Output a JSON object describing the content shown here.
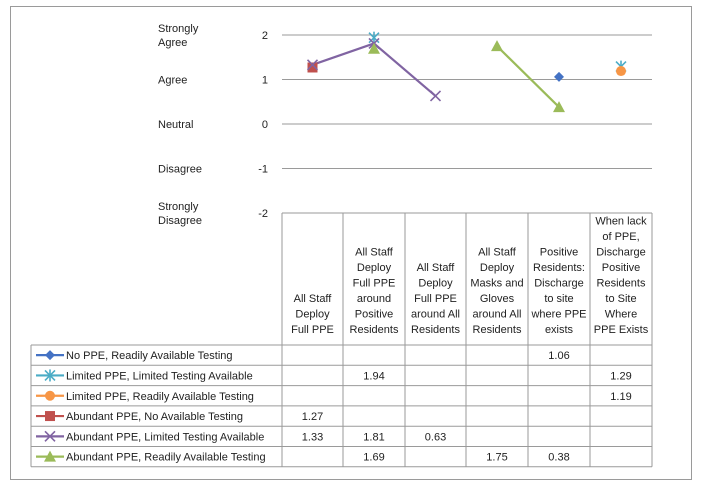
{
  "chart_data": {
    "type": "line",
    "categories": [
      [
        "All Staff",
        "Deploy",
        "Full PPE"
      ],
      [
        "All Staff",
        "Deploy",
        "Full PPE",
        "around",
        "Positive",
        "Residents"
      ],
      [
        "All Staff",
        "Deploy",
        "Full PPE",
        "around All",
        "Residents"
      ],
      [
        "All Staff",
        "Deploy",
        "Masks and",
        "Gloves",
        "around All",
        "Residents"
      ],
      [
        "Positive",
        "Residents:",
        "Discharge",
        "to site",
        "where PPE",
        "exists"
      ],
      [
        "When lack",
        "of PPE,",
        "Discharge",
        "Positive",
        "Residents",
        "to Site",
        "Where",
        "PPE Exists"
      ]
    ],
    "ylim": [
      -2,
      2
    ],
    "yticks": [
      2,
      1,
      0,
      -1,
      -2
    ],
    "y_word_labels": [
      {
        "value": 2,
        "lines": [
          "Strongly",
          "Agree"
        ]
      },
      {
        "value": 1,
        "lines": [
          "Agree"
        ]
      },
      {
        "value": 0,
        "lines": [
          "Neutral"
        ]
      },
      {
        "value": -1,
        "lines": [
          "Disagree"
        ]
      },
      {
        "value": -2,
        "lines": [
          "Strongly",
          "Disagree"
        ]
      }
    ],
    "grid": true,
    "series": [
      {
        "name": "No PPE, Readily Available Testing",
        "color": "#4472c4",
        "marker": "diamond",
        "values": [
          null,
          null,
          null,
          null,
          1.06,
          null
        ]
      },
      {
        "name": "Limited PPE, Limited Testing Available",
        "color": "#4bacc6",
        "marker": "star",
        "values": [
          null,
          1.94,
          null,
          null,
          null,
          1.29
        ]
      },
      {
        "name": "Limited PPE, Readily Available Testing",
        "color": "#f79646",
        "marker": "circle",
        "values": [
          null,
          null,
          null,
          null,
          null,
          1.19
        ]
      },
      {
        "name": "Abundant PPE, No Available Testing",
        "color": "#c0504d",
        "marker": "square",
        "values": [
          1.27,
          null,
          null,
          null,
          null,
          null
        ]
      },
      {
        "name": "Abundant PPE, Limited Testing Available",
        "color": "#8064a2",
        "marker": "x",
        "values": [
          1.33,
          1.81,
          0.63,
          null,
          null,
          null
        ]
      },
      {
        "name": "Abundant PPE, Readily Available Testing",
        "color": "#9bbb59",
        "marker": "triangle",
        "values": [
          null,
          1.69,
          null,
          1.75,
          0.38,
          null
        ]
      }
    ],
    "table_values": [
      [
        "",
        "",
        "",
        "",
        "1.06",
        ""
      ],
      [
        "",
        "1.94",
        "",
        "",
        "",
        "1.29"
      ],
      [
        "",
        "",
        "",
        "",
        "",
        "1.19"
      ],
      [
        "1.27",
        "",
        "",
        "",
        "",
        ""
      ],
      [
        "1.33",
        "1.81",
        "0.63",
        "",
        "",
        ""
      ],
      [
        "",
        "1.69",
        "",
        "1.75",
        "0.38",
        ""
      ]
    ]
  }
}
